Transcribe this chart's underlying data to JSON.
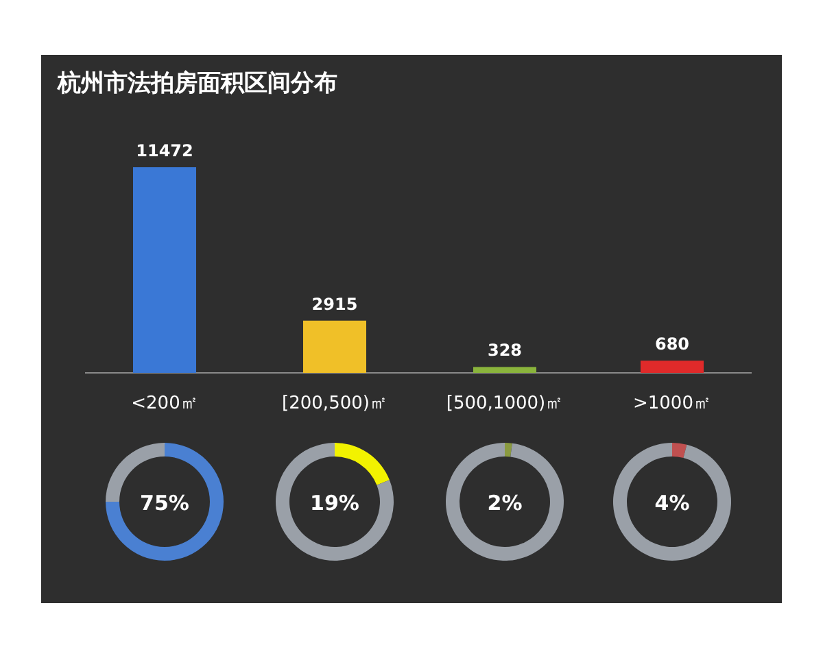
{
  "chart_data": [
    {
      "type": "bar",
      "title": "杭州市法拍房面积区间分布",
      "categories": [
        "<200㎡",
        "[200,500)㎡",
        "[500,1000)㎡",
        ">1000㎡"
      ],
      "values": [
        11472,
        2915,
        328,
        680
      ],
      "colors": [
        "#3a78d6",
        "#f0c028",
        "#8ab43c",
        "#e02a2a"
      ],
      "data_labels": true
    },
    {
      "type": "donut",
      "categories": [
        null,
        null
      ],
      "values": [
        75,
        25
      ],
      "colors": [
        "#4a80d2",
        "#9aa0a8"
      ],
      "annotations": [
        "75%"
      ]
    },
    {
      "type": "donut",
      "categories": [
        null,
        null
      ],
      "values": [
        19,
        81
      ],
      "colors": [
        "#f2f200",
        "#9aa0a8"
      ],
      "annotations": [
        "19%"
      ]
    },
    {
      "type": "donut",
      "categories": [
        null,
        null
      ],
      "values": [
        2,
        98
      ],
      "colors": [
        "#8a9a40",
        "#9aa0a8"
      ],
      "annotations": [
        "2%"
      ]
    },
    {
      "type": "donut",
      "categories": [
        null,
        null
      ],
      "values": [
        4,
        96
      ],
      "colors": [
        "#c05050",
        "#9aa0a8"
      ],
      "annotations": [
        "4%"
      ]
    }
  ]
}
